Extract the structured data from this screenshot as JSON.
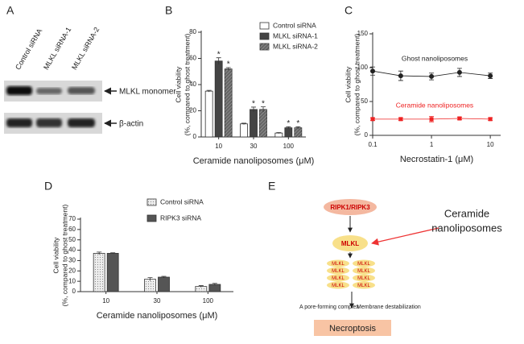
{
  "blot": {
    "label": "A",
    "lanes": [
      "Control siRNA",
      "MLKL siRNA-1",
      "MLKL siRNA-2"
    ],
    "bands": [
      "MLKL monomer",
      "β-actin"
    ]
  },
  "chart_data": [
    {
      "type": "bar",
      "label": "B",
      "ylabel": [
        "Cell viability",
        "(%, compared to ghost treatment)"
      ],
      "xlabel": "Ceramide nanoliposomes (μM)",
      "categories": [
        "10",
        "30",
        "100"
      ],
      "ylim": [
        0,
        80
      ],
      "yticks": [
        0,
        20,
        40,
        60,
        80
      ],
      "series": [
        {
          "name": "Control siRNA",
          "color": "#ffffff",
          "values": [
            35,
            10,
            3
          ],
          "errors": [
            0.6,
            0.5,
            0.4
          ]
        },
        {
          "name": "MLKL siRNA-1",
          "color": "#444444",
          "values": [
            58,
            21,
            7
          ],
          "errors": [
            2.5,
            1.8,
            0.8
          ]
        },
        {
          "name": "MLKL siRNA-2",
          "color": "#666666",
          "pattern": "hatch",
          "values": [
            52,
            21,
            7
          ],
          "errors": [
            1,
            2,
            0.8
          ]
        }
      ],
      "annotations": [
        {
          "text": "*",
          "series": 1,
          "category": 0
        },
        {
          "text": "*",
          "series": 2,
          "category": 0
        },
        {
          "text": "*",
          "series": 1,
          "category": 1
        },
        {
          "text": "*",
          "series": 2,
          "category": 1
        },
        {
          "text": "*",
          "series": 1,
          "category": 2
        },
        {
          "text": "*",
          "series": 2,
          "category": 2
        }
      ]
    },
    {
      "type": "line",
      "label": "C",
      "ylabel": [
        "Cell viability",
        "(%, compared to ghost treatment)"
      ],
      "xlabel": "Necrostatin-1 (μM)",
      "xscale": "log",
      "x": [
        0.1,
        0.3,
        1,
        3,
        10
      ],
      "xlim": [
        0.1,
        15
      ],
      "xticks": [
        0.1,
        1,
        10
      ],
      "ylim": [
        0,
        150
      ],
      "yticks": [
        0,
        50,
        100,
        150
      ],
      "series": [
        {
          "name": "Ghost nanoliposomes",
          "color": "#222222",
          "values": [
            95,
            88,
            87,
            93,
            88
          ],
          "errors": [
            6,
            7,
            5,
            6,
            4
          ]
        },
        {
          "name": "Ceramide nanoliposomes",
          "color": "#ee2222",
          "values": [
            24,
            24,
            24,
            25,
            24
          ],
          "errors": [
            2,
            2,
            4,
            2,
            2
          ]
        }
      ]
    },
    {
      "type": "bar",
      "label": "D",
      "ylabel": [
        "Cell viability",
        "(%, compared to ghost treatment)"
      ],
      "xlabel": "Ceramide nanoliposomes (μM)",
      "categories": [
        "10",
        "30",
        "100"
      ],
      "ylim": [
        0,
        70
      ],
      "yticks": [
        0,
        10,
        20,
        30,
        40,
        50,
        60,
        70
      ],
      "series": [
        {
          "name": "Control siRNA",
          "color": "#eeeeee",
          "pattern": "dots",
          "values": [
            37,
            12,
            5
          ],
          "errors": [
            1.2,
            1.5,
            0.8
          ]
        },
        {
          "name": "RIPK3 siRNA",
          "color": "#555555",
          "values": [
            37,
            14,
            7
          ],
          "errors": [
            0.5,
            0.8,
            1
          ]
        }
      ]
    }
  ],
  "diagram": {
    "label": "E",
    "upstream": "RIPK1/RIPK3",
    "effector": "MLKL",
    "treatment": [
      "Ceramide",
      "nanoliposomes"
    ],
    "complex_unit": "MLKL",
    "complex": "A pore-forming complex",
    "effect": "Membrane destabilization",
    "outcome": "Necroptosis"
  }
}
